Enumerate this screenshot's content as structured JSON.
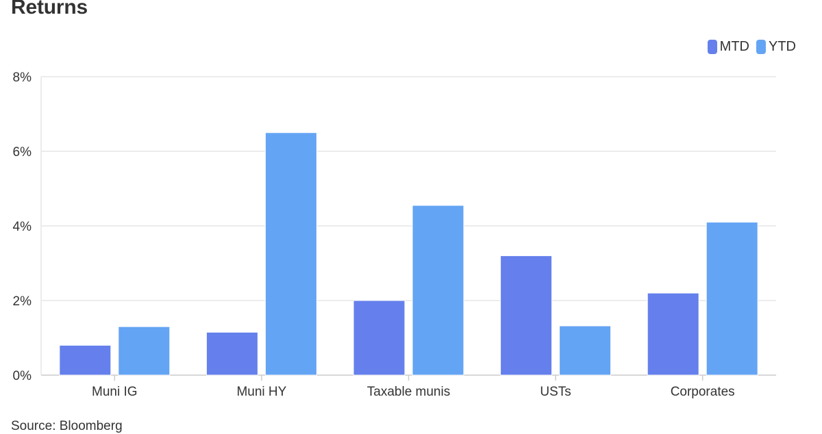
{
  "chart_data": {
    "type": "bar",
    "title": "Returns",
    "categories": [
      "Muni IG",
      "Muni HY",
      "Taxable munis",
      "USTs",
      "Corporates"
    ],
    "series": [
      {
        "name": "MTD",
        "color": "#6580ec",
        "values": [
          0.8,
          1.15,
          2.0,
          3.2,
          2.2
        ]
      },
      {
        "name": "YTD",
        "color": "#64a4f4",
        "values": [
          1.3,
          6.5,
          4.55,
          1.32,
          4.1
        ]
      }
    ],
    "ylim": [
      0,
      8
    ],
    "yticks": [
      0,
      2,
      4,
      6,
      8
    ],
    "ytick_labels": [
      "0%",
      "2%",
      "4%",
      "6%",
      "8%"
    ],
    "xlabel": "",
    "ylabel": "",
    "grid": true,
    "legend_position": "top-right",
    "source": "Source: Bloomberg"
  }
}
